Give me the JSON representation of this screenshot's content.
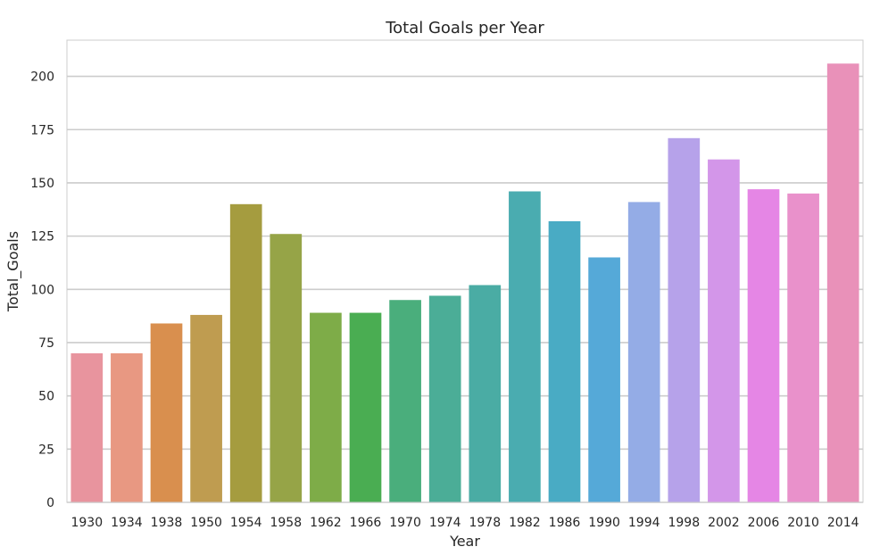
{
  "chart_data": {
    "type": "bar",
    "title": "Total Goals per Year",
    "xlabel": "Year",
    "ylabel": "Total_Goals",
    "categories": [
      "1930",
      "1934",
      "1938",
      "1950",
      "1954",
      "1958",
      "1962",
      "1966",
      "1970",
      "1974",
      "1978",
      "1982",
      "1986",
      "1990",
      "1994",
      "1998",
      "2002",
      "2006",
      "2010",
      "2014"
    ],
    "values": [
      70,
      70,
      84,
      88,
      140,
      126,
      89,
      89,
      95,
      97,
      102,
      146,
      132,
      115,
      141,
      171,
      161,
      147,
      145,
      206
    ],
    "colors": [
      "#E8949E",
      "#E89882",
      "#D98F4E",
      "#BF9C50",
      "#A59C3F",
      "#96A447",
      "#7EAC48",
      "#4AAD52",
      "#4AAE7C",
      "#4BAD97",
      "#4AACA4",
      "#4AACB0",
      "#49ABC4",
      "#55A9D8",
      "#94ACE6",
      "#B6A2EA",
      "#D396E9",
      "#E586E5",
      "#E991CB",
      "#E991B9"
    ],
    "yticks": [
      "0",
      "25",
      "50",
      "75",
      "100",
      "125",
      "150",
      "175",
      "200"
    ],
    "ylim": [
      0,
      217
    ],
    "grid": true
  }
}
